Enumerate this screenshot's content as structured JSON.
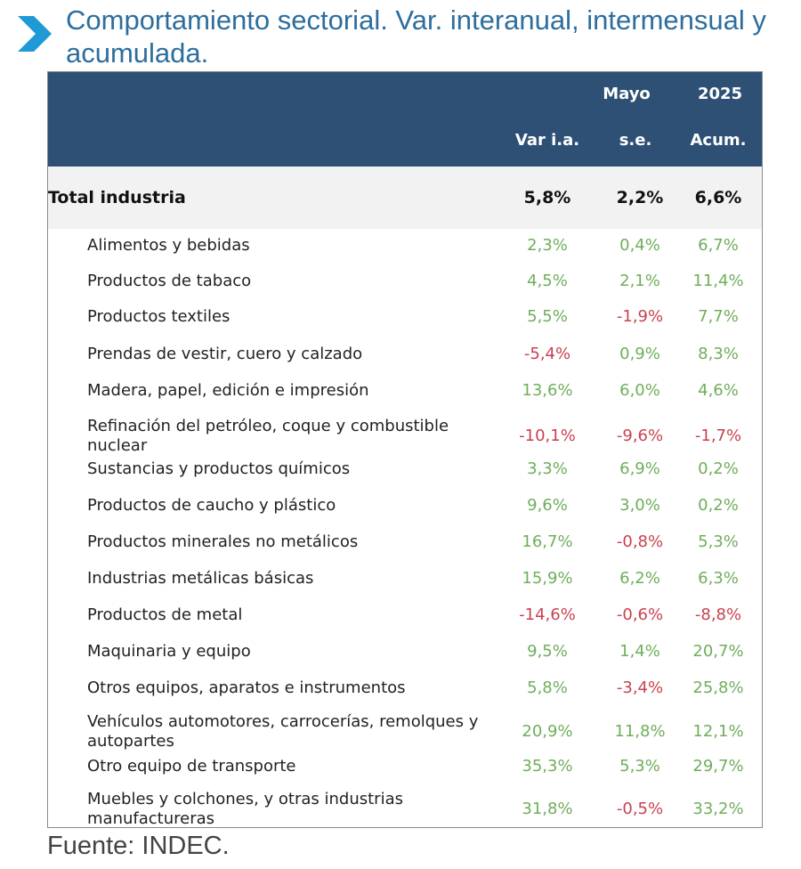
{
  "header": {
    "title": "Comportamiento sectorial. Var. interanual, intermensual y acumulada.",
    "icon": "chevron-right-icon",
    "accent_color": "#1f9ad6",
    "title_color": "#2d6e9e"
  },
  "table": {
    "header_bg": "#2e5075",
    "group_headers": {
      "month": "Mayo",
      "year": "2025"
    },
    "columns": [
      "Var i.a.",
      "s.e.",
      "Acum."
    ],
    "total": {
      "label": "Total industria",
      "values": [
        "5,8%",
        "2,2%",
        "6,6%"
      ]
    },
    "rows": [
      {
        "label": "Alimentos y bebidas",
        "values": [
          "2,3%",
          "0,4%",
          "6,7%"
        ]
      },
      {
        "label": "Productos de tabaco",
        "values": [
          "4,5%",
          "2,1%",
          "11,4%"
        ]
      },
      {
        "label": "Productos textiles",
        "values": [
          "5,5%",
          "-1,9%",
          "7,7%"
        ]
      },
      {
        "label": "Prendas de vestir, cuero y calzado",
        "values": [
          "-5,4%",
          "0,9%",
          "8,3%"
        ]
      },
      {
        "label": "Madera, papel, edición e impresión",
        "values": [
          "13,6%",
          "6,0%",
          "4,6%"
        ]
      },
      {
        "label": "Refinación del petróleo, coque y combustible nuclear",
        "values": [
          "-10,1%",
          "-9,6%",
          "-1,7%"
        ]
      },
      {
        "label": "Sustancias y productos químicos",
        "values": [
          "3,3%",
          "6,9%",
          "0,2%"
        ]
      },
      {
        "label": "Productos de caucho y plástico",
        "values": [
          "9,6%",
          "3,0%",
          "0,2%"
        ]
      },
      {
        "label": "Productos minerales no metálicos",
        "values": [
          "16,7%",
          "-0,8%",
          "5,3%"
        ]
      },
      {
        "label": "Industrias metálicas básicas",
        "values": [
          "15,9%",
          "6,2%",
          "6,3%"
        ]
      },
      {
        "label": "Productos de metal",
        "values": [
          "-14,6%",
          "-0,6%",
          "-8,8%"
        ]
      },
      {
        "label": "Maquinaria y equipo",
        "values": [
          "9,5%",
          "1,4%",
          "20,7%"
        ]
      },
      {
        "label": "Otros equipos, aparatos e instrumentos",
        "values": [
          "5,8%",
          "-3,4%",
          "25,8%"
        ]
      },
      {
        "label": "Vehículos automotores, carrocerías, remolques y autopartes",
        "values": [
          "20,9%",
          "11,8%",
          "12,1%"
        ]
      },
      {
        "label": "Otro equipo de transporte",
        "values": [
          "35,3%",
          "5,3%",
          "29,7%"
        ]
      },
      {
        "label": "Muebles y colchones, y otras industrias manufactureras",
        "values": [
          "31,8%",
          "-0,5%",
          "33,2%"
        ]
      }
    ],
    "positive_color": "#6fae5a",
    "negative_color": "#c8424f"
  },
  "footer": {
    "source": "Fuente: INDEC."
  }
}
